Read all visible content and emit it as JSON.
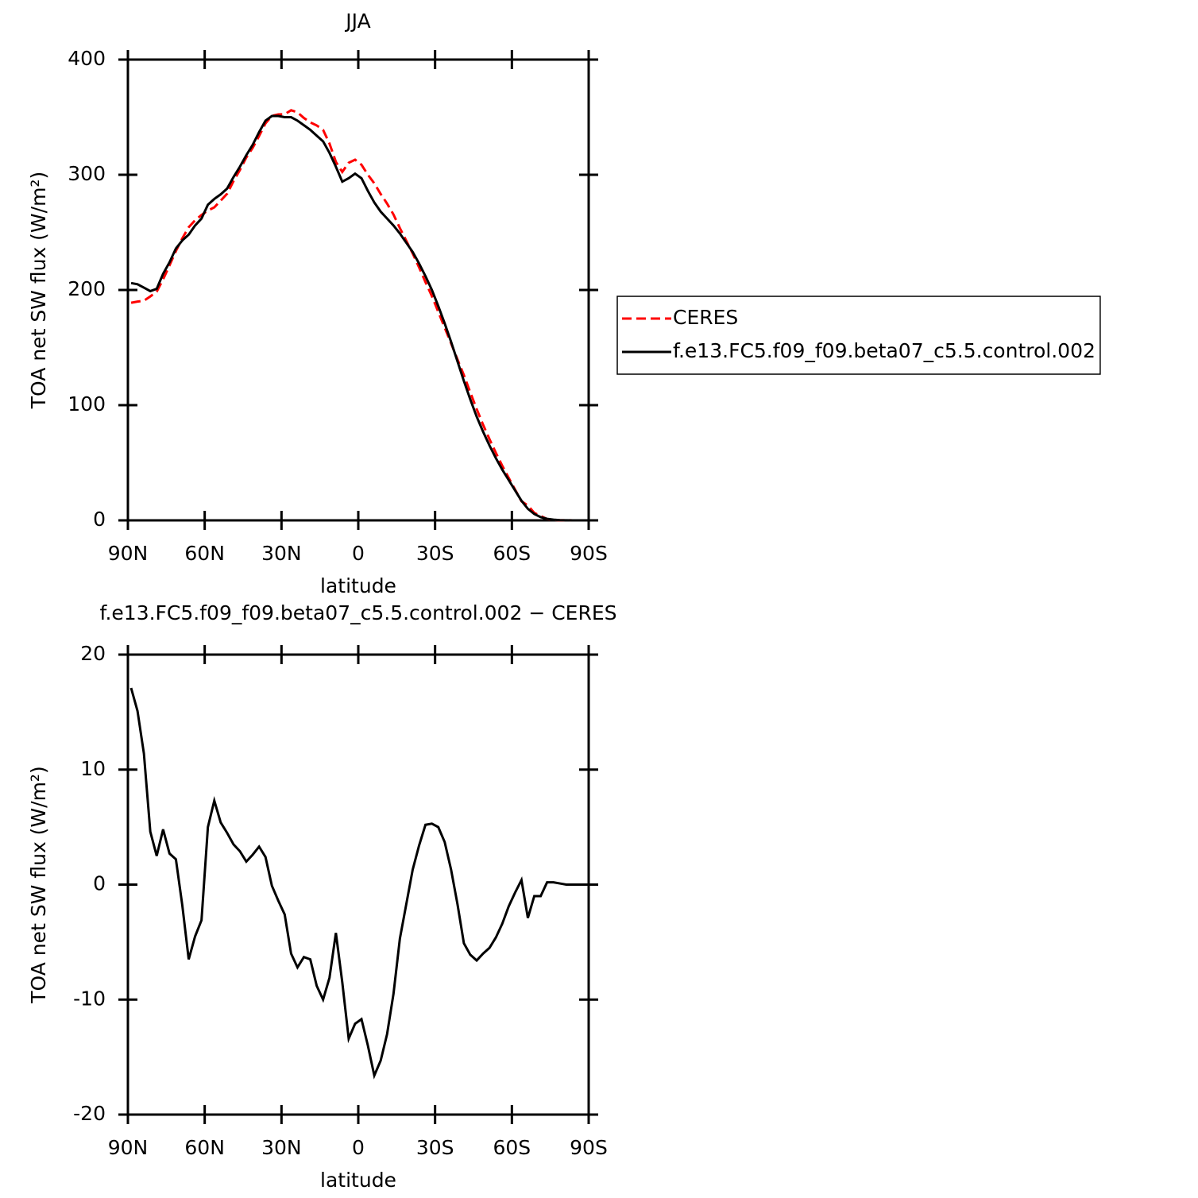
{
  "chart_data": [
    {
      "type": "line",
      "title": "JJA",
      "xlabel": "latitude",
      "ylabel": "TOA net SW flux (W/m²)",
      "x": [
        88.75,
        86.25,
        83.75,
        81.25,
        78.75,
        76.25,
        73.75,
        71.25,
        68.75,
        66.25,
        63.75,
        61.25,
        58.75,
        56.25,
        53.75,
        51.25,
        48.75,
        46.25,
        43.75,
        41.25,
        38.75,
        36.25,
        33.75,
        31.25,
        28.75,
        26.25,
        23.75,
        21.25,
        18.75,
        16.25,
        13.75,
        11.25,
        8.75,
        6.25,
        3.75,
        1.25,
        -1.25,
        -3.75,
        -6.25,
        -8.75,
        -11.25,
        -13.75,
        -16.25,
        -18.75,
        -21.25,
        -23.75,
        -26.25,
        -28.75,
        -31.25,
        -33.75,
        -36.25,
        -38.75,
        -41.25,
        -43.75,
        -46.25,
        -48.75,
        -51.25,
        -53.75,
        -56.25,
        -58.75,
        -61.25,
        -63.75,
        -66.25,
        -68.75,
        -71.25,
        -73.75,
        -76.25,
        -78.75,
        -81.25,
        -83.75,
        -86.25,
        -88.75
      ],
      "series": [
        {
          "name": "CERES",
          "color": "#ff0000",
          "linestyle": "dashed",
          "values": [
            188.9,
            189.9,
            190.6,
            194.4,
            198.5,
            209.2,
            221.3,
            233.8,
            244.8,
            254.5,
            260.5,
            265.1,
            269,
            271.7,
            277.6,
            283.5,
            294.5,
            304.1,
            315,
            323.4,
            333.7,
            344.6,
            351.1,
            352.4,
            352.6,
            356,
            354.2,
            349.3,
            345.5,
            342.8,
            339,
            327.1,
            311.2,
            302.5,
            310.4,
            313.1,
            308.7,
            300,
            292.6,
            283.3,
            275,
            265.5,
            253.7,
            242.7,
            231.7,
            219.6,
            206.8,
            194.7,
            181,
            167.3,
            153.7,
            139.7,
            126.1,
            111.1,
            96.6,
            83,
            70.5,
            58.6,
            47.4,
            36.9,
            26.7,
            16.6,
            12.9,
            6.5,
            3.8,
            1.1,
            0.4,
            0.1,
            0.1,
            0,
            0,
            0
          ]
        },
        {
          "name": "f.e13.FC5.f09_f09.beta07_c5.5.control.002",
          "color": "#000000",
          "linestyle": "solid",
          "values": [
            206,
            205,
            202,
            199,
            201,
            214,
            224,
            236,
            243,
            248,
            256,
            262,
            274,
            279,
            283,
            288,
            298,
            307,
            317,
            326,
            337,
            347,
            351,
            351,
            350,
            350,
            347,
            343,
            339,
            334,
            329,
            319,
            307,
            294,
            297,
            301,
            297,
            286,
            276,
            268,
            262,
            256,
            249,
            241,
            233,
            223,
            212,
            200,
            186,
            171,
            155,
            138,
            121,
            105,
            90,
            77,
            65,
            54,
            44,
            35,
            26,
            17,
            10,
            5.5,
            2.8,
            1.3,
            0.6,
            0.2,
            0.1,
            0,
            0,
            0
          ]
        }
      ],
      "xlim": [
        90,
        -90
      ],
      "xticks": [
        {
          "value": 90,
          "label": "90N"
        },
        {
          "value": 60,
          "label": "60N"
        },
        {
          "value": 30,
          "label": "30N"
        },
        0,
        {
          "value": -30,
          "label": "30S"
        },
        {
          "value": -60,
          "label": "60S"
        },
        {
          "value": -90,
          "label": "90S"
        }
      ],
      "ylim": [
        0,
        400
      ],
      "yticks": [
        0,
        100,
        200,
        300,
        400
      ],
      "legend": "right"
    },
    {
      "type": "line",
      "title": "f.e13.FC5.f09_f09.beta07_c5.5.control.002 − CERES",
      "xlabel": "latitude",
      "ylabel": "TOA net SW flux (W/m²)",
      "x": [
        88.75,
        86.25,
        83.75,
        81.25,
        78.75,
        76.25,
        73.75,
        71.25,
        68.75,
        66.25,
        63.75,
        61.25,
        58.75,
        56.25,
        53.75,
        51.25,
        48.75,
        46.25,
        43.75,
        41.25,
        38.75,
        36.25,
        33.75,
        31.25,
        28.75,
        26.25,
        23.75,
        21.25,
        18.75,
        16.25,
        13.75,
        11.25,
        8.75,
        6.25,
        3.75,
        1.25,
        -1.25,
        -3.75,
        -6.25,
        -8.75,
        -11.25,
        -13.75,
        -16.25,
        -18.75,
        -21.25,
        -23.75,
        -26.25,
        -28.75,
        -31.25,
        -33.75,
        -36.25,
        -38.75,
        -41.25,
        -43.75,
        -46.25,
        -48.75,
        -51.25,
        -53.75,
        -56.25,
        -58.75,
        -61.25,
        -63.75,
        -66.25,
        -68.75,
        -71.25,
        -73.75,
        -76.25,
        -78.75,
        -81.25,
        -83.75,
        -86.25,
        -88.75
      ],
      "series": [
        {
          "color": "#000000",
          "linestyle": "solid",
          "values": [
            17.1,
            15.1,
            11.4,
            4.6,
            2.5,
            4.8,
            2.7,
            2.2,
            -1.8,
            -6.5,
            -4.5,
            -3.1,
            5.0,
            7.3,
            5.4,
            4.5,
            3.5,
            2.9,
            2.0,
            2.6,
            3.3,
            2.4,
            -0.1,
            -1.4,
            -2.6,
            -6.0,
            -7.2,
            -6.3,
            -6.5,
            -8.8,
            -10.0,
            -8.1,
            -4.2,
            -8.5,
            -13.4,
            -12.1,
            -11.7,
            -14.0,
            -16.6,
            -15.3,
            -13.0,
            -9.5,
            -4.7,
            -1.7,
            1.3,
            3.4,
            5.2,
            5.3,
            5.0,
            3.7,
            1.3,
            -1.7,
            -5.1,
            -6.1,
            -6.6,
            -6.0,
            -5.5,
            -4.6,
            -3.4,
            -1.9,
            -0.7,
            0.4,
            -2.9,
            -1.0,
            -1.0,
            0.2,
            0.2,
            0.1,
            0,
            0,
            0,
            0
          ]
        }
      ],
      "xlim": [
        90,
        -90
      ],
      "xticks": [
        {
          "value": 90,
          "label": "90N"
        },
        {
          "value": 60,
          "label": "60N"
        },
        {
          "value": 30,
          "label": "30N"
        },
        0,
        {
          "value": -30,
          "label": "30S"
        },
        {
          "value": -60,
          "label": "60S"
        },
        {
          "value": -90,
          "label": "90S"
        }
      ],
      "ylim": [
        -20,
        20
      ],
      "yticks": [
        -20,
        -10,
        0,
        10,
        20
      ]
    }
  ]
}
